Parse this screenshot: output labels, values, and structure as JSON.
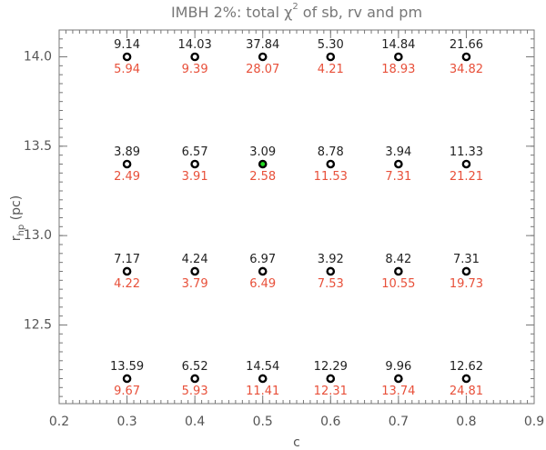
{
  "chart_data": {
    "type": "scatter",
    "title_parts": [
      "IMBH 2%: total χ",
      "2",
      " of sb, rv and pm"
    ],
    "xlabel": "c",
    "ylabel_parts": [
      "r",
      "hp",
      " (pc)"
    ],
    "xlim": [
      0.2,
      0.9
    ],
    "xticks": [
      0.2,
      0.3,
      0.4,
      0.5,
      0.6,
      0.7,
      0.8,
      0.9
    ],
    "ylim": [
      12.06,
      14.15
    ],
    "yticks": [
      {
        "value": 12.5,
        "label": "12.5"
      },
      {
        "value": 13,
        "label": "13.0"
      },
      {
        "value": 13.5,
        "label": "13.5"
      },
      {
        "value": 14,
        "label": "14.0"
      }
    ],
    "x": [
      0.3,
      0.4,
      0.5,
      0.6,
      0.7,
      0.8,
      0.3,
      0.4,
      0.5,
      0.6,
      0.7,
      0.8,
      0.3,
      0.4,
      0.5,
      0.6,
      0.7,
      0.8,
      0.3,
      0.4,
      0.5,
      0.6,
      0.7,
      0.8
    ],
    "y": [
      14,
      14,
      14,
      14,
      14,
      14,
      13.4,
      13.4,
      13.4,
      13.4,
      13.4,
      13.4,
      12.8,
      12.8,
      12.8,
      12.8,
      12.8,
      12.8,
      12.2,
      12.2,
      12.2,
      12.2,
      12.2,
      12.2
    ],
    "marker_fill": [
      "#ffffff",
      "#ffffff",
      "#ffffff",
      "#ffffff",
      "#ffffff",
      "#ffffff",
      "#ffffff",
      "#ffffff",
      "#22dd22",
      "#ffffff",
      "#ffffff",
      "#ffffff",
      "#ffffff",
      "#ffffff",
      "#ffffff",
      "#ffffff",
      "#ffffff",
      "#ffffff",
      "#ffffff",
      "#ffffff",
      "#ffffff",
      "#ffffff",
      "#ffffff",
      "#ffffff"
    ],
    "series": [
      {
        "color": "#222222",
        "values": [
          9.14,
          14.03,
          37.84,
          5.3,
          14.84,
          21.66,
          3.89,
          6.57,
          3.09,
          8.78,
          3.94,
          11.33,
          7.17,
          4.24,
          6.97,
          3.92,
          8.42,
          7.31,
          13.59,
          6.52,
          14.54,
          12.29,
          9.96,
          12.62
        ],
        "value_labels": [
          "9.14",
          "14.03",
          "37.84",
          "5.30",
          "14.84",
          "21.66",
          "3.89",
          "6.57",
          "3.09",
          "8.78",
          "3.94",
          "11.33",
          "7.17",
          "4.24",
          "6.97",
          "3.92",
          "8.42",
          "7.31",
          "13.59",
          "6.52",
          "14.54",
          "12.29",
          "9.96",
          "12.62"
        ]
      },
      {
        "color": "#e8503a",
        "values": [
          5.94,
          9.39,
          28.07,
          4.21,
          18.93,
          34.82,
          2.49,
          3.91,
          2.58,
          11.53,
          7.31,
          21.21,
          4.22,
          3.79,
          6.49,
          7.53,
          10.55,
          19.73,
          9.67,
          5.93,
          11.41,
          12.31,
          13.74,
          24.81
        ]
      }
    ]
  }
}
